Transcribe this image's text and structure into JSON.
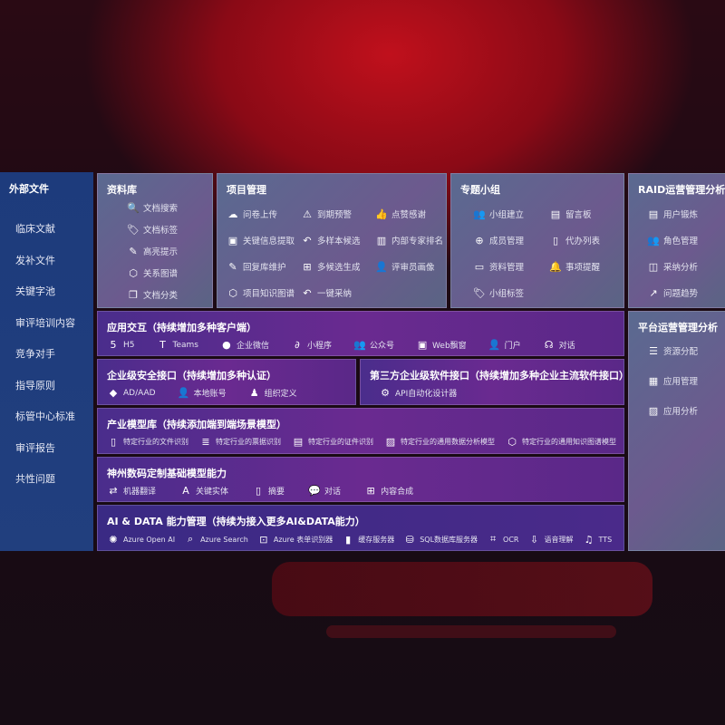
{
  "sidebar": {
    "title": "外部文件",
    "items": [
      "临床文献",
      "发补文件",
      "关键字池",
      "审评培训内容",
      "竞争对手",
      "指导原则",
      "标管中心标准",
      "审评报告",
      "共性问题"
    ]
  },
  "library": {
    "title": "资料库",
    "items": [
      {
        "icon": "doc-search-icon",
        "label": "文档搜索"
      },
      {
        "icon": "tag-icon",
        "label": "文档标签"
      },
      {
        "icon": "pen-icon",
        "label": "高亮提示"
      },
      {
        "icon": "graph-icon",
        "label": "关系图谱"
      },
      {
        "icon": "docs-icon",
        "label": "文档分类"
      }
    ]
  },
  "project": {
    "title": "项目管理",
    "items": [
      {
        "icon": "cloud-upload-icon",
        "label": "问卷上传"
      },
      {
        "icon": "alarm-icon",
        "label": "到期预警"
      },
      {
        "icon": "thumbs-up-icon",
        "label": "点赞感谢"
      },
      {
        "icon": "window-icon",
        "label": "关键信息提取"
      },
      {
        "icon": "reply-icon",
        "label": "多样本候选"
      },
      {
        "icon": "ranking-icon",
        "label": "内部专家排名"
      },
      {
        "icon": "edit-icon",
        "label": "回复库维护"
      },
      {
        "icon": "puzzle-icon",
        "label": "多候选生成"
      },
      {
        "icon": "user-icon",
        "label": "评审员画像"
      },
      {
        "icon": "graph-icon",
        "label": "项目知识图谱"
      },
      {
        "icon": "reply-icon",
        "label": "一键采纳"
      }
    ]
  },
  "group": {
    "title": "专题小组",
    "items": [
      {
        "icon": "users-icon",
        "label": "小组建立"
      },
      {
        "icon": "bbs-icon",
        "label": "留言板"
      },
      {
        "icon": "user-add-icon",
        "label": "成员管理"
      },
      {
        "icon": "clipboard-icon",
        "label": "代办列表"
      },
      {
        "icon": "folder-icon",
        "label": "资料管理"
      },
      {
        "icon": "bell-icon",
        "label": "事项提醒"
      },
      {
        "icon": "tag-icon",
        "label": "小组标签"
      }
    ]
  },
  "raid": {
    "title": "RAID运营管理分析",
    "items": [
      {
        "icon": "id-card-icon",
        "label": "用户锻炼"
      },
      {
        "icon": "users-icon",
        "label": "角色管理"
      },
      {
        "icon": "qa-icon",
        "label": "采纳分析"
      },
      {
        "icon": "trend-icon",
        "label": "问题趋势"
      }
    ]
  },
  "platform": {
    "title": "平台运营管理分析",
    "items": [
      {
        "icon": "list-check-icon",
        "label": "资源分配"
      },
      {
        "icon": "apps-icon",
        "label": "应用管理"
      },
      {
        "icon": "chart-icon",
        "label": "应用分析"
      }
    ]
  },
  "app": {
    "title": "应用交互（持续增加多种客户端）",
    "items": [
      {
        "icon": "html5-icon",
        "label": "H5"
      },
      {
        "icon": "teams-icon",
        "label": "Teams"
      },
      {
        "icon": "wechat-icon",
        "label": "企业微信"
      },
      {
        "icon": "miniprogram-icon",
        "label": "小程序"
      },
      {
        "icon": "users-icon",
        "label": "公众号"
      },
      {
        "icon": "window-icon",
        "label": "Web飘窗"
      },
      {
        "icon": "portal-icon",
        "label": "门户"
      },
      {
        "icon": "chat-users-icon",
        "label": "对话"
      }
    ]
  },
  "security": {
    "title": "企业级安全接口（持续增加多种认证）",
    "items": [
      {
        "icon": "diamond-icon",
        "label": "AD/AAD"
      },
      {
        "icon": "user-icon",
        "label": "本地账号"
      },
      {
        "icon": "org-icon",
        "label": "组织定义"
      }
    ]
  },
  "thirdparty": {
    "title": "第三方企业级软件接口（持续增加多种企业主流软件接口）",
    "items": [
      {
        "icon": "gear-icon",
        "label": "API自动化设计器"
      }
    ]
  },
  "industry": {
    "title": "产业模型库（持续添加端到端场景模型）",
    "items": [
      {
        "icon": "doc-icon",
        "label": "特定行业的文件识别"
      },
      {
        "icon": "receipt-icon",
        "label": "特定行业的票据识别"
      },
      {
        "icon": "id-card-icon",
        "label": "特定行业的证件识别"
      },
      {
        "icon": "chart-icon",
        "label": "特定行业的通用数据分析模型"
      },
      {
        "icon": "graph-icon",
        "label": "特定行业的通用知识图谱模型"
      }
    ]
  },
  "base": {
    "title": "神州数码定制基础模型能力",
    "items": [
      {
        "icon": "translate-icon",
        "label": "机器翻译"
      },
      {
        "icon": "entity-icon",
        "label": "关键实体"
      },
      {
        "icon": "doc-icon",
        "label": "摘要"
      },
      {
        "icon": "chat-icon",
        "label": "对话"
      },
      {
        "icon": "puzzle-icon",
        "label": "内容合成"
      }
    ]
  },
  "ai": {
    "title": "AI & DATA 能力管理（持续为接入更多AI&DATA能力）",
    "items": [
      {
        "icon": "openai-icon",
        "label": "Azure Open AI"
      },
      {
        "icon": "search-icon",
        "label": "Azure Search"
      },
      {
        "icon": "form-icon",
        "label": "Azure 表单识别器"
      },
      {
        "icon": "cache-icon",
        "label": "缓存服务器"
      },
      {
        "icon": "database-icon",
        "label": "SQL数据库服务器"
      },
      {
        "icon": "ocr-icon",
        "label": "OCR"
      },
      {
        "icon": "speech-icon",
        "label": "语音理解"
      },
      {
        "icon": "tts-icon",
        "label": "TTS"
      }
    ]
  }
}
